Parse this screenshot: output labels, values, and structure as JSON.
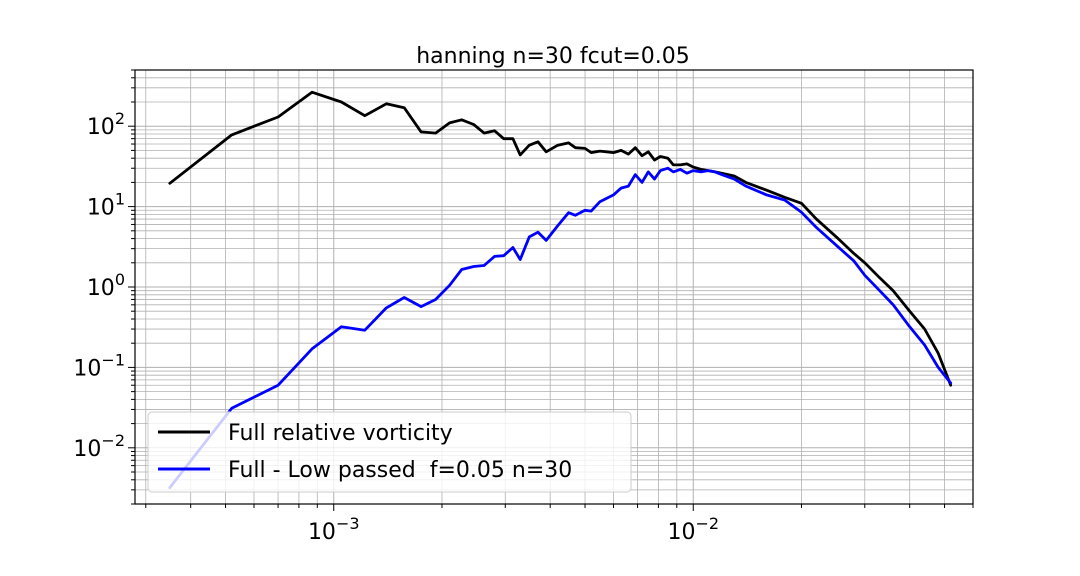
{
  "chart_data": {
    "type": "line",
    "title": "hanning n=30 fcut=0.05",
    "xlabel": "",
    "ylabel": "",
    "xscale": "log",
    "yscale": "log",
    "xlim": [
      0.00028,
      0.06
    ],
    "ylim": [
      0.002,
      500
    ],
    "grid": "major and minor",
    "legend_position": "lower-left",
    "x_tick_labels": [
      {
        "value": 0.001,
        "base": "10",
        "exp": "−3"
      },
      {
        "value": 0.01,
        "base": "10",
        "exp": "−2"
      }
    ],
    "y_tick_labels": [
      {
        "value": 100,
        "base": "10",
        "exp": "2"
      },
      {
        "value": 10,
        "base": "10",
        "exp": "1"
      },
      {
        "value": 1,
        "base": "10",
        "exp": "0"
      },
      {
        "value": 0.1,
        "base": "10",
        "exp": "−1"
      },
      {
        "value": 0.01,
        "base": "10",
        "exp": "−2"
      }
    ],
    "series": [
      {
        "name": "Full relative vorticity",
        "color": "#000000",
        "points": [
          [
            0.00035,
            19.5
          ],
          [
            0.00052,
            78
          ],
          [
            0.0007,
            130
          ],
          [
            0.00087,
            265
          ],
          [
            0.00105,
            200
          ],
          [
            0.00122,
            135
          ],
          [
            0.0014,
            190
          ],
          [
            0.00157,
            170
          ],
          [
            0.00175,
            85
          ],
          [
            0.00192,
            82
          ],
          [
            0.0021,
            110
          ],
          [
            0.00227,
            120
          ],
          [
            0.00245,
            105
          ],
          [
            0.00262,
            82
          ],
          [
            0.0028,
            88
          ],
          [
            0.00297,
            70
          ],
          [
            0.00315,
            70
          ],
          [
            0.0033,
            44
          ],
          [
            0.0035,
            58
          ],
          [
            0.0037,
            64
          ],
          [
            0.0039,
            48
          ],
          [
            0.0042,
            58
          ],
          [
            0.0045,
            62
          ],
          [
            0.0047,
            54
          ],
          [
            0.005,
            53
          ],
          [
            0.0052,
            47
          ],
          [
            0.0055,
            49
          ],
          [
            0.006,
            47
          ],
          [
            0.0063,
            50
          ],
          [
            0.0066,
            45
          ],
          [
            0.0069,
            54
          ],
          [
            0.0072,
            43
          ],
          [
            0.0075,
            48
          ],
          [
            0.0078,
            38
          ],
          [
            0.0081,
            42
          ],
          [
            0.0085,
            40
          ],
          [
            0.0088,
            33
          ],
          [
            0.0092,
            33
          ],
          [
            0.0096,
            34
          ],
          [
            0.01,
            31
          ],
          [
            0.0105,
            29
          ],
          [
            0.011,
            28
          ],
          [
            0.0115,
            27
          ],
          [
            0.012,
            26
          ],
          [
            0.013,
            24
          ],
          [
            0.014,
            20
          ],
          [
            0.016,
            16
          ],
          [
            0.018,
            13
          ],
          [
            0.02,
            11
          ],
          [
            0.022,
            7
          ],
          [
            0.025,
            4.2
          ],
          [
            0.028,
            2.6
          ],
          [
            0.03,
            2.0
          ],
          [
            0.033,
            1.3
          ],
          [
            0.036,
            0.9
          ],
          [
            0.04,
            0.5
          ],
          [
            0.044,
            0.3
          ],
          [
            0.048,
            0.15
          ],
          [
            0.052,
            0.06
          ]
        ]
      },
      {
        "name": "Full - Low passed  f=0.05 n=30",
        "color": "#0000ff",
        "points": [
          [
            0.00035,
            0.0032
          ],
          [
            0.00052,
            0.031
          ],
          [
            0.0007,
            0.06
          ],
          [
            0.00087,
            0.17
          ],
          [
            0.00105,
            0.32
          ],
          [
            0.00122,
            0.29
          ],
          [
            0.0014,
            0.55
          ],
          [
            0.00157,
            0.74
          ],
          [
            0.00175,
            0.57
          ],
          [
            0.00192,
            0.7
          ],
          [
            0.0021,
            1.05
          ],
          [
            0.00227,
            1.65
          ],
          [
            0.00245,
            1.8
          ],
          [
            0.00262,
            1.85
          ],
          [
            0.0028,
            2.4
          ],
          [
            0.00297,
            2.45
          ],
          [
            0.00315,
            3.1
          ],
          [
            0.0033,
            2.2
          ],
          [
            0.0035,
            4.2
          ],
          [
            0.0037,
            4.8
          ],
          [
            0.0039,
            3.8
          ],
          [
            0.0042,
            5.8
          ],
          [
            0.0045,
            8.4
          ],
          [
            0.0047,
            7.8
          ],
          [
            0.005,
            9
          ],
          [
            0.0052,
            8.8
          ],
          [
            0.0055,
            11.5
          ],
          [
            0.006,
            14
          ],
          [
            0.0063,
            17
          ],
          [
            0.0066,
            18
          ],
          [
            0.0069,
            25
          ],
          [
            0.0072,
            20
          ],
          [
            0.0075,
            27
          ],
          [
            0.0078,
            22
          ],
          [
            0.0081,
            28
          ],
          [
            0.0085,
            30
          ],
          [
            0.0088,
            27
          ],
          [
            0.0092,
            29
          ],
          [
            0.0096,
            26
          ],
          [
            0.01,
            28
          ],
          [
            0.0105,
            27
          ],
          [
            0.011,
            28
          ],
          [
            0.0115,
            27
          ],
          [
            0.012,
            25
          ],
          [
            0.013,
            22
          ],
          [
            0.014,
            18
          ],
          [
            0.016,
            14
          ],
          [
            0.018,
            12
          ],
          [
            0.02,
            8.5
          ],
          [
            0.022,
            5.5
          ],
          [
            0.025,
            3.3
          ],
          [
            0.028,
            2.1
          ],
          [
            0.03,
            1.4
          ],
          [
            0.033,
            0.9
          ],
          [
            0.036,
            0.6
          ],
          [
            0.04,
            0.32
          ],
          [
            0.044,
            0.19
          ],
          [
            0.048,
            0.1
          ],
          [
            0.052,
            0.064
          ]
        ]
      }
    ]
  }
}
